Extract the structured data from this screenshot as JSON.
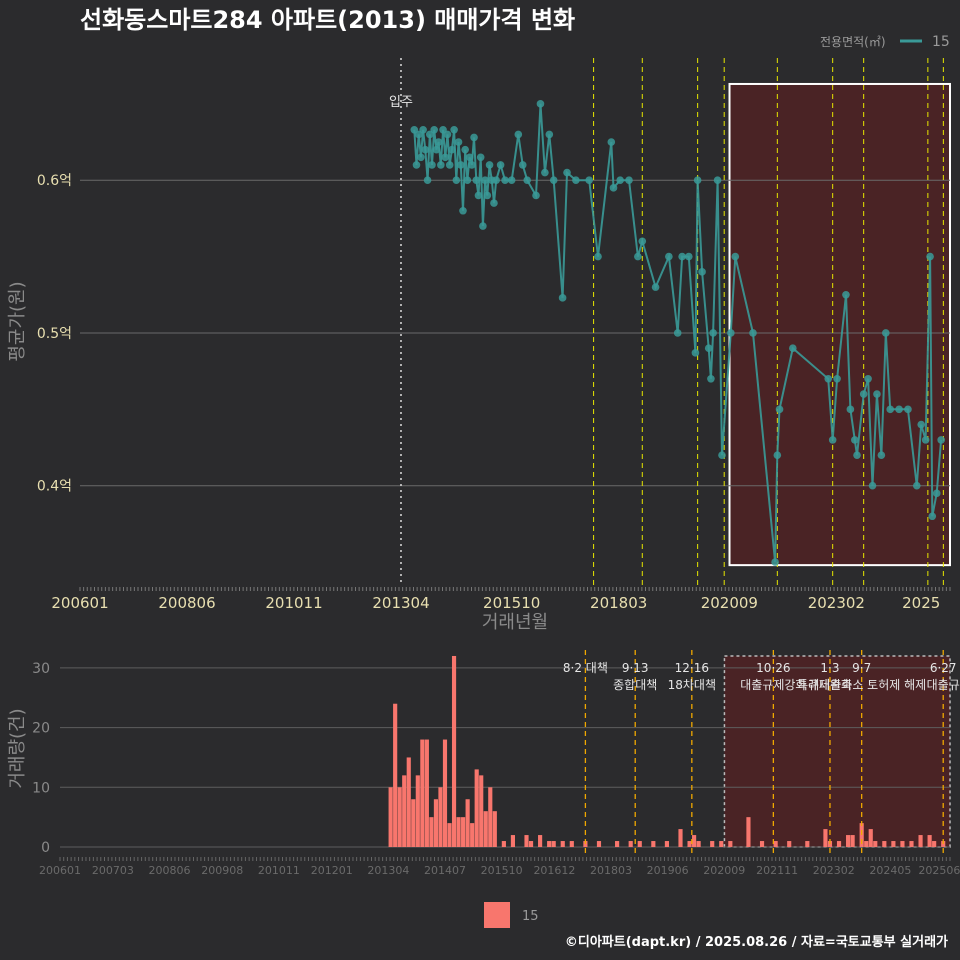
{
  "title": "선화동스마트284 아파트(2013) 매매가격 변화",
  "legend": {
    "title": "전용면적(㎡)",
    "item": "15"
  },
  "bottom_legend_item": "15",
  "caption": "©디아파트(dapt.kr) / 2025.08.26 / 자료=국토교통부 실거래가",
  "colors": {
    "line": "#3a9a98",
    "bar": "#f8766d",
    "highlight": "#5a1e22",
    "policy": "#e6e600",
    "policy2": "#f0a800"
  },
  "chart_data": [
    {
      "type": "line",
      "title": "선화동스마트284 아파트(2013) 매매가격 변화",
      "xlabel": "거래년월",
      "ylabel": "평균가(원)",
      "x_ticks": [
        "200601",
        "200806",
        "201011",
        "201304",
        "201510",
        "201803",
        "202009",
        "202302",
        "2025"
      ],
      "y_ticks": [
        {
          "v": 0.4,
          "label": "0.4억"
        },
        {
          "v": 0.5,
          "label": "0.5억"
        },
        {
          "v": 0.6,
          "label": "0.6억"
        }
      ],
      "ylim": [
        0.335,
        0.68
      ],
      "xlim": [
        2006.0,
        2025.65
      ],
      "move_in": {
        "x": 2013.25,
        "label": "입주"
      },
      "policy_lines": [
        2017.6,
        2018.7,
        2019.95,
        2020.55,
        2021.75,
        2023.0,
        2023.7,
        2025.15,
        2025.5
      ],
      "highlight": {
        "x0": 2020.67,
        "x1": 2025.65,
        "y0": 0.348,
        "y1": 0.663
      },
      "series": [
        {
          "name": "15",
          "points": [
            [
              2013.55,
              0.633
            ],
            [
              2013.6,
              0.61
            ],
            [
              2013.65,
              0.63
            ],
            [
              2013.7,
              0.615
            ],
            [
              2013.75,
              0.633
            ],
            [
              2013.8,
              0.62
            ],
            [
              2013.85,
              0.6
            ],
            [
              2013.9,
              0.63
            ],
            [
              2013.95,
              0.61
            ],
            [
              2014.0,
              0.633
            ],
            [
              2014.05,
              0.62
            ],
            [
              2014.1,
              0.625
            ],
            [
              2014.15,
              0.61
            ],
            [
              2014.2,
              0.633
            ],
            [
              2014.25,
              0.615
            ],
            [
              2014.3,
              0.63
            ],
            [
              2014.35,
              0.61
            ],
            [
              2014.4,
              0.62
            ],
            [
              2014.45,
              0.633
            ],
            [
              2014.5,
              0.6
            ],
            [
              2014.55,
              0.625
            ],
            [
              2014.6,
              0.61
            ],
            [
              2014.65,
              0.58
            ],
            [
              2014.7,
              0.62
            ],
            [
              2014.75,
              0.6
            ],
            [
              2014.8,
              0.615
            ],
            [
              2014.85,
              0.61
            ],
            [
              2014.9,
              0.628
            ],
            [
              2014.95,
              0.6
            ],
            [
              2015.0,
              0.59
            ],
            [
              2015.05,
              0.615
            ],
            [
              2015.1,
              0.57
            ],
            [
              2015.15,
              0.6
            ],
            [
              2015.2,
              0.59
            ],
            [
              2015.25,
              0.61
            ],
            [
              2015.3,
              0.6
            ],
            [
              2015.35,
              0.585
            ],
            [
              2015.4,
              0.6
            ],
            [
              2015.5,
              0.61
            ],
            [
              2015.6,
              0.6
            ],
            [
              2015.75,
              0.6
            ],
            [
              2015.9,
              0.63
            ],
            [
              2016.0,
              0.61
            ],
            [
              2016.1,
              0.6
            ],
            [
              2016.3,
              0.59
            ],
            [
              2016.4,
              0.65
            ],
            [
              2016.5,
              0.605
            ],
            [
              2016.6,
              0.63
            ],
            [
              2016.7,
              0.6
            ],
            [
              2016.9,
              0.523
            ],
            [
              2017.0,
              0.605
            ],
            [
              2017.2,
              0.6
            ],
            [
              2017.5,
              0.6
            ],
            [
              2017.7,
              0.55
            ],
            [
              2018.0,
              0.625
            ],
            [
              2018.05,
              0.595
            ],
            [
              2018.2,
              0.6
            ],
            [
              2018.4,
              0.6
            ],
            [
              2018.6,
              0.55
            ],
            [
              2018.7,
              0.56
            ],
            [
              2019.0,
              0.53
            ],
            [
              2019.3,
              0.55
            ],
            [
              2019.5,
              0.5
            ],
            [
              2019.6,
              0.55
            ],
            [
              2019.75,
              0.55
            ],
            [
              2019.9,
              0.487
            ],
            [
              2019.95,
              0.6
            ],
            [
              2020.05,
              0.54
            ],
            [
              2020.2,
              0.49
            ],
            [
              2020.25,
              0.47
            ],
            [
              2020.3,
              0.5
            ],
            [
              2020.4,
              0.6
            ],
            [
              2020.5,
              0.42
            ],
            [
              2020.7,
              0.5
            ],
            [
              2020.8,
              0.55
            ],
            [
              2021.2,
              0.5
            ],
            [
              2021.7,
              0.35
            ],
            [
              2021.75,
              0.42
            ],
            [
              2021.8,
              0.45
            ],
            [
              2022.1,
              0.49
            ],
            [
              2022.9,
              0.47
            ],
            [
              2023.0,
              0.43
            ],
            [
              2023.1,
              0.47
            ],
            [
              2023.3,
              0.525
            ],
            [
              2023.4,
              0.45
            ],
            [
              2023.5,
              0.43
            ],
            [
              2023.55,
              0.42
            ],
            [
              2023.7,
              0.46
            ],
            [
              2023.8,
              0.47
            ],
            [
              2023.9,
              0.4
            ],
            [
              2024.0,
              0.46
            ],
            [
              2024.1,
              0.42
            ],
            [
              2024.2,
              0.5
            ],
            [
              2024.3,
              0.45
            ],
            [
              2024.5,
              0.45
            ],
            [
              2024.7,
              0.45
            ],
            [
              2024.9,
              0.4
            ],
            [
              2025.0,
              0.44
            ],
            [
              2025.1,
              0.43
            ],
            [
              2025.2,
              0.55
            ],
            [
              2025.25,
              0.38
            ],
            [
              2025.35,
              0.395
            ],
            [
              2025.45,
              0.43
            ]
          ]
        }
      ]
    },
    {
      "type": "bar",
      "ylabel": "거래량(건)",
      "x_ticks": [
        "200601",
        "200703",
        "200806",
        "200908",
        "201011",
        "201201",
        "201304",
        "201407",
        "201510",
        "201612",
        "201803",
        "201906",
        "202009",
        "202111",
        "202302",
        "202405",
        "202506"
      ],
      "y_ticks": [
        0,
        10,
        20,
        30
      ],
      "ylim": [
        0,
        33
      ],
      "xlim": [
        2006.0,
        2025.65
      ],
      "highlight": {
        "x0": 2020.67,
        "x1": 2025.65,
        "y0": 0,
        "y1": 32
      },
      "annotations": [
        {
          "x": 2017.6,
          "lines": [
            "8·2 대책"
          ]
        },
        {
          "x": 2018.7,
          "lines": [
            "9·13",
            "종합대책"
          ]
        },
        {
          "x": 2019.95,
          "lines": [
            "12·16",
            "18차대책"
          ]
        },
        {
          "x": 2021.75,
          "lines": [
            "10·26",
            "대출규제강화"
          ]
        },
        {
          "x": 2023.0,
          "lines": [
            "1·3",
            "규제완화"
          ]
        },
        {
          "x": 2023.7,
          "lines": [
            "9·7",
            "특례대출축소 토허제 해제"
          ]
        },
        {
          "x": 2025.5,
          "lines": [
            "6·27",
            "대출규"
          ]
        }
      ],
      "series": [
        {
          "name": "15",
          "x": [
            2013.3,
            2013.4,
            2013.5,
            2013.6,
            2013.7,
            2013.8,
            2013.9,
            2014.0,
            2014.1,
            2014.2,
            2014.3,
            2014.4,
            2014.5,
            2014.6,
            2014.7,
            2014.8,
            2014.9,
            2015.0,
            2015.1,
            2015.2,
            2015.3,
            2015.4,
            2015.5,
            2015.6,
            2015.8,
            2016.0,
            2016.3,
            2016.4,
            2016.6,
            2016.8,
            2016.9,
            2017.1,
            2017.3,
            2017.6,
            2017.9,
            2018.3,
            2018.6,
            2018.8,
            2019.1,
            2019.4,
            2019.7,
            2019.9,
            2020.0,
            2020.1,
            2020.4,
            2020.6,
            2020.8,
            2021.2,
            2021.5,
            2021.8,
            2022.1,
            2022.5,
            2022.9,
            2023.0,
            2023.2,
            2023.4,
            2023.5,
            2023.7,
            2023.8,
            2023.9,
            2024.0,
            2024.2,
            2024.4,
            2024.6,
            2024.8,
            2025.0,
            2025.2,
            2025.3,
            2025.5
          ],
          "values": [
            10,
            24,
            10,
            12,
            15,
            8,
            12,
            18,
            18,
            5,
            8,
            10,
            18,
            4,
            32,
            5,
            5,
            8,
            4,
            13,
            12,
            6,
            10,
            6,
            1,
            2,
            2,
            1,
            2,
            1,
            1,
            1,
            1,
            1,
            1,
            1,
            1,
            1,
            1,
            1,
            3,
            1,
            2,
            1,
            1,
            1,
            1,
            5,
            1,
            1,
            1,
            1,
            3,
            1,
            1,
            2,
            2,
            4,
            1,
            3,
            1,
            1,
            1,
            1,
            1,
            2,
            2,
            1,
            1
          ]
        }
      ]
    }
  ]
}
